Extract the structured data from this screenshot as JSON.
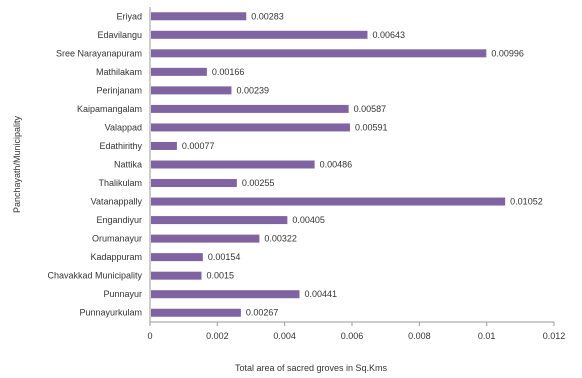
{
  "chart_data": {
    "type": "bar",
    "orientation": "horizontal",
    "title": "",
    "xlabel": "Total area of sacred groves in Sq.Kms",
    "ylabel": "Panchayath/Municipality",
    "xlim": [
      0,
      0.012
    ],
    "xticks": [
      "0",
      "0.002",
      "0.004",
      "0.006",
      "0.008",
      "0.01",
      "0.012"
    ],
    "grid": false,
    "legend": "none",
    "bar_color": "#8064a2",
    "categories": [
      "Eriyad",
      "Edavilangu",
      "Sree Narayanapuram",
      "Mathilakam",
      "Perinjanam",
      "Kaipamangalam",
      "Valappad",
      "Edathirithy",
      "Nattika",
      "Thalikulam",
      "Vatanappally",
      "Engandiyur",
      "Orumanayur",
      "Kadappuram",
      "Chavakkad Municipality",
      "Punnayur",
      "Punnayurkulam"
    ],
    "values": [
      0.00283,
      0.00643,
      0.00996,
      0.00166,
      0.00239,
      0.00587,
      0.00591,
      0.00077,
      0.00486,
      0.00255,
      0.01052,
      0.00405,
      0.00322,
      0.00154,
      0.0015,
      0.00441,
      0.00267
    ],
    "value_labels": [
      "0.00283",
      "0.00643",
      "0.00996",
      "0.00166",
      "0.00239",
      "0.00587",
      "0.00591",
      "0.00077",
      "0.00486",
      "0.00255",
      "0.01052",
      "0.00405",
      "0.00322",
      "0.00154",
      "0.0015",
      "0.00441",
      "0.00267"
    ]
  }
}
